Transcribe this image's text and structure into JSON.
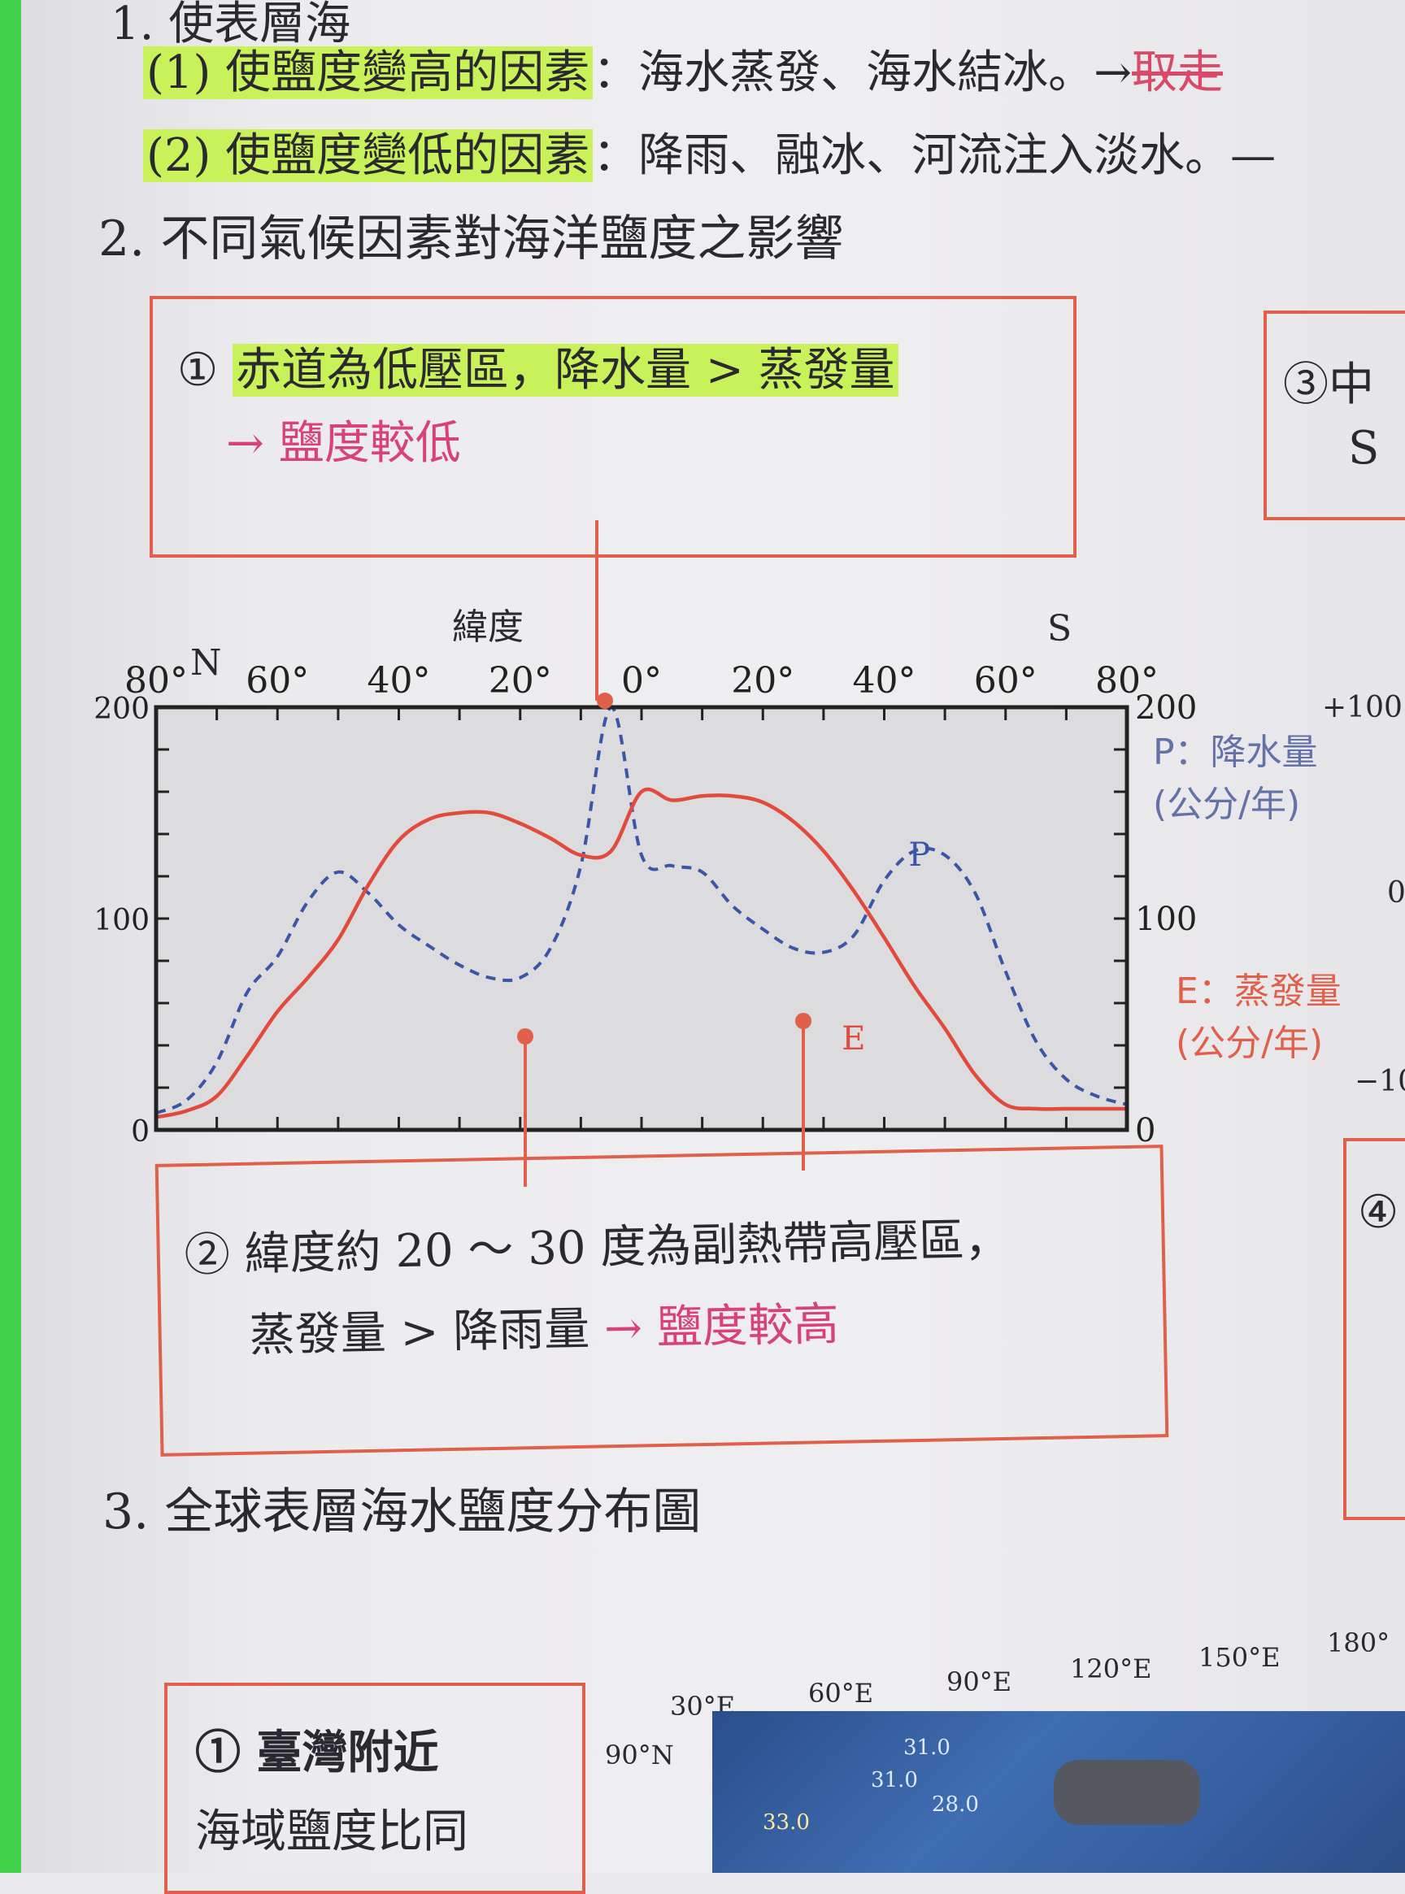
{
  "item1": {
    "title": "1. 使表層海",
    "rise": {
      "label": "(1) 使鹽度變高的因素",
      "value": "：海水蒸發、海水結冰。→",
      "struck": "取走"
    },
    "fall": {
      "label": "(2) 使鹽度變低的因素",
      "value": "：降雨、融冰、河流注入淡水。—"
    }
  },
  "item2": {
    "title": "2. 不同氣候因素對海洋鹽度之影響",
    "box1": {
      "num": "①",
      "line1": "赤道為低壓區，降水量 > 蒸發量",
      "line2": "→ 鹽度較低"
    },
    "box3": {
      "num": "③",
      "text": "中",
      "line2": "S"
    },
    "box2": {
      "num": "②",
      "line1": "緯度約 20 ～ 30 度為副熱帶高壓區，",
      "line2a": "蒸發量 > 降雨量",
      "arrow": "→",
      "line2b": "鹽度較高"
    },
    "box4": {
      "num": "④"
    },
    "right_axis_ticks": [
      "+100",
      "0",
      "−10"
    ]
  },
  "chart_data": {
    "type": "line",
    "xlabel": "緯度",
    "north_label": "N",
    "south_label": "S",
    "x_tick_labels": [
      "80°",
      "60°",
      "40°",
      "20°",
      "0°",
      "20°",
      "40°",
      "60°",
      "80°"
    ],
    "x": [
      -80,
      -75,
      -70,
      -65,
      -60,
      -55,
      -50,
      -45,
      -40,
      -35,
      -30,
      -25,
      -20,
      -15,
      -10,
      -5,
      0,
      5,
      10,
      15,
      20,
      25,
      30,
      35,
      40,
      45,
      50,
      55,
      60,
      65,
      70,
      75,
      80
    ],
    "left_ylim": [
      0,
      200
    ],
    "left_ticks": [
      "200",
      "100",
      "0"
    ],
    "right_ylim": [
      0,
      200
    ],
    "right_ticks": [
      "200",
      "100",
      "0"
    ],
    "series": [
      {
        "name": "P",
        "legend": "P：降水量",
        "unit": "(公分/年)",
        "color": "#3b56a6",
        "dash": true,
        "values": [
          8,
          14,
          32,
          65,
          82,
          108,
          122,
          112,
          97,
          87,
          78,
          72,
          72,
          86,
          125,
          200,
          130,
          125,
          122,
          106,
          95,
          86,
          84,
          92,
          118,
          132,
          130,
          112,
          75,
          42,
          24,
          16,
          12
        ]
      },
      {
        "name": "E",
        "legend": "E：蒸發量",
        "unit": "(公分/年)",
        "color": "#e14a3c",
        "dash": false,
        "values": [
          6,
          9,
          16,
          35,
          56,
          72,
          90,
          116,
          137,
          147,
          150,
          150,
          145,
          138,
          130,
          132,
          160,
          156,
          158,
          158,
          155,
          146,
          132,
          113,
          91,
          68,
          48,
          26,
          12,
          10,
          10,
          10,
          10
        ]
      }
    ]
  },
  "item3": {
    "title": "3. 全球表層海水鹽度分布圖",
    "box1": {
      "line1": "① 臺灣附近",
      "line2": "海域鹽度比同"
    },
    "lon_labels": [
      "30°E",
      "60°E",
      "90°E",
      "120°E",
      "150°E",
      "180°"
    ],
    "lat_label": "90°N",
    "contours": [
      "31.0",
      "31.0",
      "33.0",
      "28.0"
    ]
  }
}
